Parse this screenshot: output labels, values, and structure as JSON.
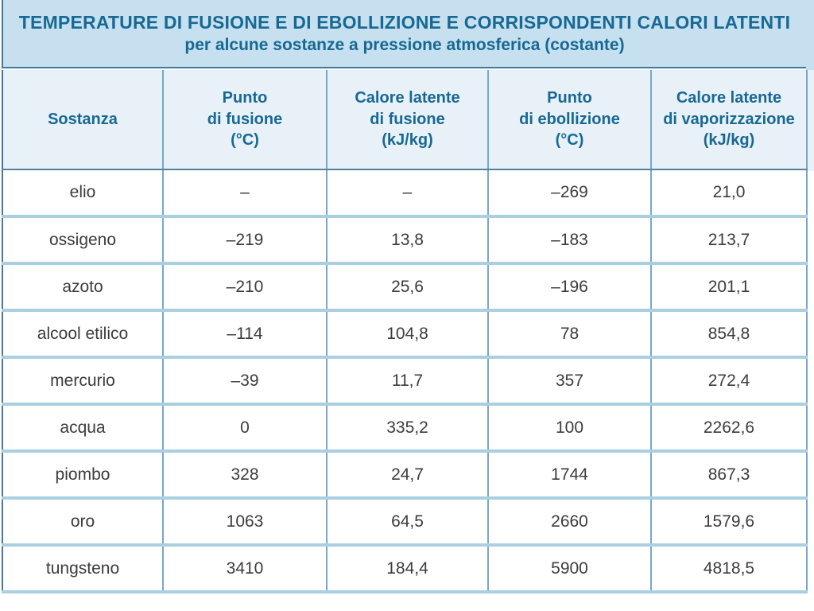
{
  "header": {
    "title_line1": "TEMPERATURE DI FUSIONE E DI EBOLLIZIONE E CORRISPONDENTI CALORI LATENTI",
    "title_line2": "per alcune sostanze a pressione atmosferica (costante)"
  },
  "chart_data": {
    "type": "table",
    "title": "TEMPERATURE DI FUSIONE E DI EBOLLIZIONE E CORRISPONDENTI CALORI LATENTI",
    "subtitle": "per alcune sostanze a pressione atmosferica (costante)",
    "columns": [
      "Sostanza",
      "Punto\ndi fusione\n(°C)",
      "Calore latente\ndi fusione\n(kJ/kg)",
      "Punto\ndi ebollizione\n(°C)",
      "Calore latente\ndi vaporizzazione\n(kJ/kg)"
    ],
    "rows": [
      [
        "elio",
        "–",
        "–",
        "–269",
        "21,0"
      ],
      [
        "ossigeno",
        "–219",
        "13,8",
        "–183",
        "213,7"
      ],
      [
        "azoto",
        "–210",
        "25,6",
        "–196",
        "201,1"
      ],
      [
        "alcool etilico",
        "–114",
        "104,8",
        "78",
        "854,8"
      ],
      [
        "mercurio",
        "–39",
        "11,7",
        "357",
        "272,4"
      ],
      [
        "acqua",
        "0",
        "335,2",
        "100",
        "2262,6"
      ],
      [
        "piombo",
        "328",
        "24,7",
        "1744",
        "867,3"
      ],
      [
        "oro",
        "1063",
        "64,5",
        "2660",
        "1579,6"
      ],
      [
        "tungsteno",
        "3410",
        "184,4",
        "5900",
        "4818,5"
      ]
    ]
  },
  "colors": {
    "title_bg": "#c6e0ef",
    "header_bg": "#e8f0f8",
    "accent_text": "#176994",
    "cell_text": "#3c3c3c",
    "outer_border": "#44789a",
    "col_border": "#76a9c6",
    "row_border": "#aacfe0",
    "page_bg": "#ffffff"
  }
}
